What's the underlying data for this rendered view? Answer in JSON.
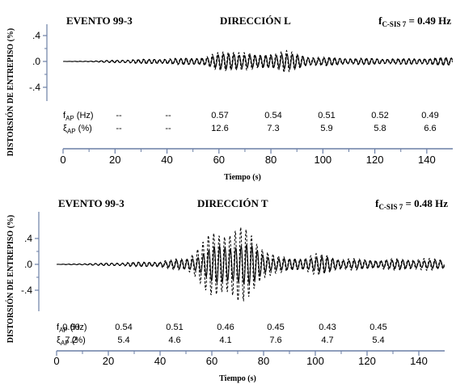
{
  "chart_data": [
    {
      "type": "line",
      "title": "EVENTO 99-3",
      "subtitle": "DIRECCIÓN L",
      "annotation": {
        "base": "f",
        "sub": "C-SIS 7",
        "rest": " = 0.49 Hz"
      },
      "ylabel": "DISTORSIÓN DE ENTREPISO (%)",
      "xlabel": "Tiempo (s)",
      "xlim": [
        0,
        150
      ],
      "ylim": [
        -0.55,
        0.55
      ],
      "xticks": [
        0,
        20,
        40,
        60,
        80,
        100,
        120,
        140
      ],
      "yticks": [
        {
          "v": 0.4,
          "label": ".4"
        },
        {
          "v": 0.0,
          "label": ".0"
        },
        {
          "v": -0.4,
          "label": "-.4"
        }
      ],
      "grid": false,
      "series": [
        {
          "style": "solid",
          "envelope": [
            [
              0,
              0
            ],
            [
              10,
              0.005
            ],
            [
              20,
              0.02
            ],
            [
              30,
              0.03
            ],
            [
              40,
              0.04
            ],
            [
              50,
              0.05
            ],
            [
              55,
              0.07
            ],
            [
              62,
              0.12
            ],
            [
              66,
              0.15
            ],
            [
              70,
              0.12
            ],
            [
              75,
              0.08
            ],
            [
              80,
              0.12
            ],
            [
              85,
              0.14
            ],
            [
              90,
              0.1
            ],
            [
              95,
              0.07
            ],
            [
              100,
              0.06
            ],
            [
              110,
              0.05
            ],
            [
              120,
              0.045
            ],
            [
              130,
              0.04
            ],
            [
              140,
              0.05
            ],
            [
              150,
              0.06
            ]
          ]
        },
        {
          "style": "dashed",
          "envelope": [
            [
              0,
              0
            ],
            [
              10,
              0.005
            ],
            [
              20,
              0.02
            ],
            [
              30,
              0.035
            ],
            [
              40,
              0.045
            ],
            [
              50,
              0.06
            ],
            [
              55,
              0.08
            ],
            [
              62,
              0.17
            ],
            [
              66,
              0.2
            ],
            [
              70,
              0.15
            ],
            [
              75,
              0.1
            ],
            [
              80,
              0.15
            ],
            [
              85,
              0.18
            ],
            [
              90,
              0.13
            ],
            [
              95,
              0.08
            ],
            [
              100,
              0.07
            ],
            [
              110,
              0.055
            ],
            [
              120,
              0.05
            ],
            [
              130,
              0.045
            ],
            [
              140,
              0.055
            ],
            [
              150,
              0.065
            ]
          ]
        }
      ],
      "table": {
        "rows": [
          {
            "label": {
              "base": "f",
              "sub": "AP",
              "rest": " (Hz)"
            },
            "values": [
              "--",
              "--",
              "0.57",
              "0.54",
              "0.51",
              "0.52",
              "0.49"
            ]
          },
          {
            "label": {
              "base": "ξ",
              "sub": "AP",
              "rest": " (%)"
            },
            "values": [
              "--",
              "--",
              "12.6",
              "7.3",
              "5.9",
              "5.8",
              "6.6"
            ]
          }
        ],
        "column_x": [
          24,
          47,
          72,
          96,
          120,
          143,
          167
        ]
      }
    },
    {
      "type": "line",
      "title": "EVENTO 99-3",
      "subtitle": "DIRECCIÓN T",
      "annotation": {
        "base": "f",
        "sub": "C-SIS 7",
        "rest": " = 0.48 Hz"
      },
      "ylabel": "DISTORSIÓN DE ENTREPISO (%)",
      "xlabel": "Tiempo (s)",
      "xlim": [
        0,
        150
      ],
      "ylim": [
        -0.55,
        0.55
      ],
      "xticks": [
        0,
        20,
        40,
        60,
        80,
        100,
        120,
        140
      ],
      "yticks": [
        {
          "v": 0.4,
          "label": ".4"
        },
        {
          "v": 0.0,
          "label": ".0"
        },
        {
          "v": -0.4,
          "label": "-.4"
        }
      ],
      "grid": false,
      "series": [
        {
          "style": "solid",
          "envelope": [
            [
              0,
              0
            ],
            [
              10,
              0.01
            ],
            [
              20,
              0.02
            ],
            [
              30,
              0.03
            ],
            [
              40,
              0.04
            ],
            [
              45,
              0.06
            ],
            [
              50,
              0.08
            ],
            [
              55,
              0.15
            ],
            [
              60,
              0.26
            ],
            [
              65,
              0.33
            ],
            [
              70,
              0.35
            ],
            [
              75,
              0.3
            ],
            [
              80,
              0.18
            ],
            [
              85,
              0.1
            ],
            [
              90,
              0.08
            ],
            [
              95,
              0.1
            ],
            [
              100,
              0.12
            ],
            [
              105,
              0.11
            ],
            [
              110,
              0.08
            ],
            [
              120,
              0.06
            ],
            [
              130,
              0.07
            ],
            [
              140,
              0.07
            ],
            [
              150,
              0.06
            ]
          ]
        },
        {
          "style": "dashed",
          "envelope": [
            [
              0,
              0
            ],
            [
              10,
              0.01
            ],
            [
              20,
              0.02
            ],
            [
              30,
              0.035
            ],
            [
              40,
              0.05
            ],
            [
              45,
              0.08
            ],
            [
              50,
              0.12
            ],
            [
              55,
              0.3
            ],
            [
              60,
              0.5
            ],
            [
              65,
              0.6
            ],
            [
              70,
              0.62
            ],
            [
              75,
              0.5
            ],
            [
              80,
              0.3
            ],
            [
              85,
              0.14
            ],
            [
              90,
              0.1
            ],
            [
              95,
              0.12
            ],
            [
              100,
              0.17
            ],
            [
              105,
              0.15
            ],
            [
              110,
              0.1
            ],
            [
              120,
              0.08
            ],
            [
              130,
              0.09
            ],
            [
              140,
              0.1
            ],
            [
              150,
              0.08
            ]
          ]
        }
      ],
      "table": {
        "rows": [
          {
            "label": {
              "base": "f",
              "sub": "AP",
              "rest": " (Hz)"
            },
            "values": [
              "0.60",
              "0.54",
              "0.51",
              "0.46",
              "0.45",
              "0.43",
              "0.45"
            ]
          },
          {
            "label": {
              "base": "ξ",
              "sub": "AP",
              "rest": " (%)"
            },
            "values": [
              "7.2",
              "5.4",
              "4.6",
              "4.1",
              "7.6",
              "4.7",
              "5.4"
            ]
          }
        ],
        "column_x": [
          10,
          34,
          58,
          82,
          106,
          130,
          153
        ]
      }
    }
  ]
}
